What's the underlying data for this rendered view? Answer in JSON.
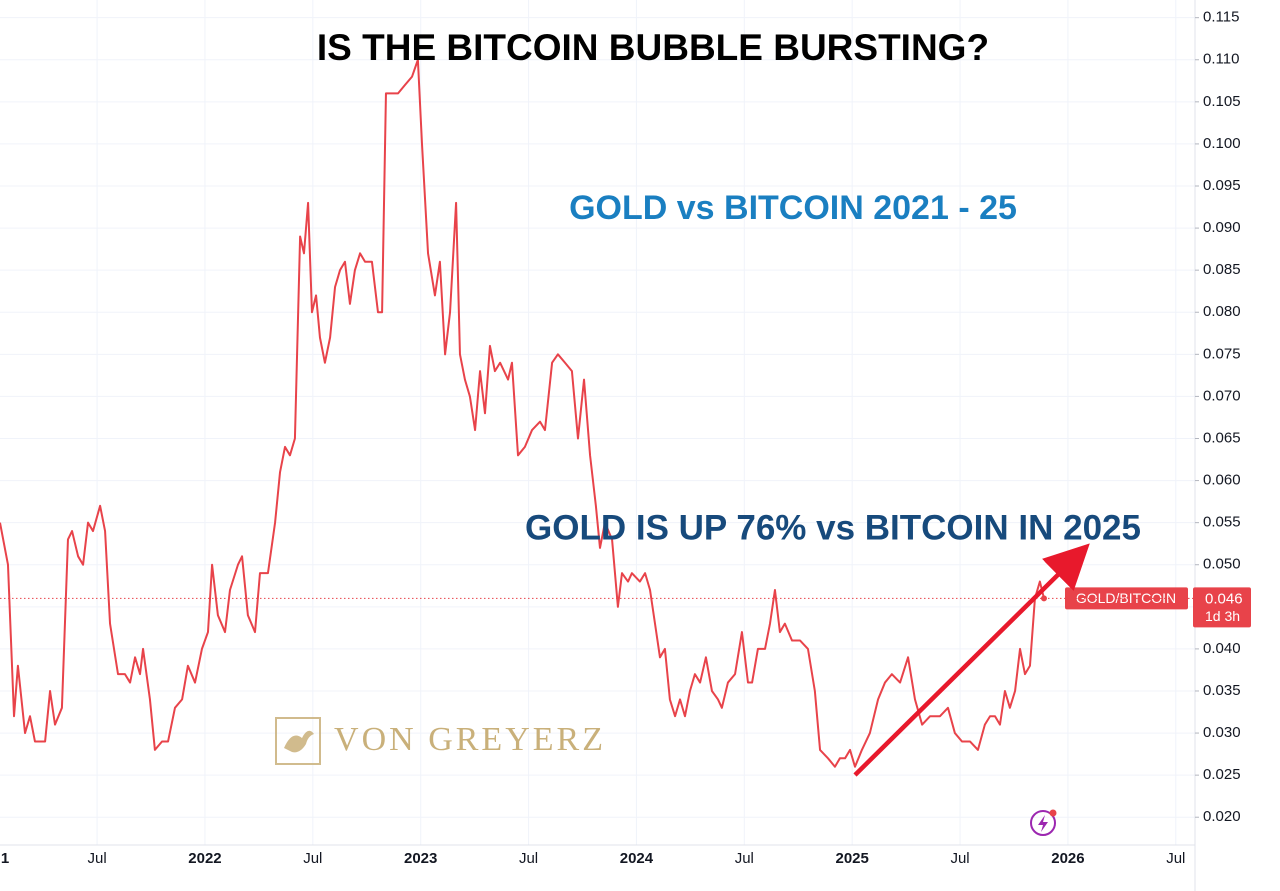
{
  "chart_data": {
    "type": "line",
    "title": "IS THE BITCOIN BUBBLE BURSTING?",
    "subtitle": "GOLD vs BITCOIN 2021 - 25",
    "annotation": "GOLD IS UP 76% vs BITCOIN IN 2025",
    "watermark": "VON GREYERZ",
    "last_value": 0.046,
    "countdown": "1d 3h",
    "grid": true,
    "xlim": [
      2021.05,
      2026.589
    ],
    "ylim": [
      0.0167,
      0.1171
    ],
    "xticks": [
      {
        "value": 2021,
        "label": "1"
      },
      {
        "value": 2021.5,
        "label": "Jul"
      },
      2022,
      {
        "value": 2022.5,
        "label": "Jul"
      },
      2023,
      {
        "value": 2023.5,
        "label": "Jul"
      },
      2024,
      {
        "value": 2024.5,
        "label": "Jul"
      },
      2025,
      {
        "value": 2025.5,
        "label": "Jul"
      },
      2026,
      {
        "value": 2026.5,
        "label": "Jul"
      }
    ],
    "yticks": [
      {
        "value": 0.02,
        "label": "0.020"
      },
      0.025,
      {
        "value": 0.03,
        "label": "0.030"
      },
      0.035,
      {
        "value": 0.04,
        "label": "0.040"
      },
      0.045,
      {
        "value": 0.05,
        "label": "0.050"
      },
      0.055,
      {
        "value": 0.06,
        "label": "0.060"
      },
      0.065,
      {
        "value": 0.07,
        "label": "0.070"
      },
      0.075,
      {
        "value": 0.08,
        "label": "0.080"
      },
      0.085,
      {
        "value": 0.09,
        "label": "0.090"
      },
      0.095,
      {
        "value": 0.1,
        "label": "0.100"
      },
      0.105,
      {
        "value": 0.11,
        "label": "0.110"
      },
      0.115
    ],
    "x": [
      2021.05,
      2021.087,
      2021.115,
      2021.133,
      2021.166,
      2021.189,
      2021.212,
      2021.259,
      2021.282,
      2021.305,
      2021.337,
      2021.365,
      2021.384,
      2021.412,
      2021.435,
      2021.458,
      2021.481,
      2021.514,
      2021.537,
      2021.56,
      2021.597,
      2021.629,
      2021.653,
      2021.676,
      2021.699,
      2021.713,
      2021.745,
      2021.768,
      2021.801,
      2021.829,
      2021.861,
      2021.894,
      2021.921,
      2021.954,
      2021.986,
      2022.014,
      2022.033,
      2022.06,
      2022.093,
      2022.116,
      2022.153,
      2022.172,
      2022.199,
      2022.232,
      2022.255,
      2022.292,
      2022.325,
      2022.348,
      2022.371,
      2022.394,
      2022.417,
      2022.441,
      2022.459,
      2022.478,
      2022.496,
      2022.515,
      2022.533,
      2022.556,
      2022.58,
      2022.603,
      2022.626,
      2022.649,
      2022.672,
      2022.695,
      2022.719,
      2022.742,
      2022.774,
      2022.802,
      2022.821,
      2022.839,
      2022.867,
      2022.895,
      2022.927,
      2022.96,
      2022.987,
      2023.006,
      2023.034,
      2023.066,
      2023.089,
      2023.113,
      2023.136,
      2023.164,
      2023.182,
      2023.205,
      2023.228,
      2023.252,
      2023.275,
      2023.298,
      2023.321,
      2023.344,
      2023.368,
      2023.405,
      2023.423,
      2023.451,
      2023.483,
      2023.516,
      2023.553,
      2023.576,
      2023.609,
      2023.636,
      2023.669,
      2023.701,
      2023.729,
      2023.757,
      2023.785,
      2023.812,
      2023.831,
      2023.854,
      2023.887,
      2023.914,
      2023.933,
      2023.961,
      2023.979,
      2024.016,
      2024.04,
      2024.063,
      2024.086,
      2024.109,
      2024.132,
      2024.155,
      2024.179,
      2024.202,
      2024.225,
      2024.248,
      2024.271,
      2024.295,
      2024.322,
      2024.35,
      2024.378,
      2024.396,
      2024.424,
      2024.457,
      2024.489,
      2024.517,
      2024.536,
      2024.563,
      2024.596,
      2024.619,
      2024.642,
      2024.665,
      2024.688,
      2024.721,
      2024.758,
      2024.795,
      2024.827,
      2024.851,
      2024.888,
      2024.92,
      2024.943,
      2024.967,
      2024.99,
      2025.013,
      2025.045,
      2025.082,
      2025.12,
      2025.152,
      2025.184,
      2025.222,
      2025.259,
      2025.291,
      2025.324,
      2025.361,
      2025.407,
      2025.444,
      2025.476,
      2025.509,
      2025.546,
      2025.583,
      2025.615,
      2025.639,
      2025.662,
      2025.685,
      2025.708,
      2025.731,
      2025.755,
      2025.778,
      2025.801,
      2025.824,
      2025.847,
      2025.87,
      2025.889
    ],
    "series": [
      {
        "name": "GOLD/BITCOIN",
        "color": "#e8434a",
        "values": [
          0.055,
          0.05,
          0.032,
          0.038,
          0.03,
          0.032,
          0.029,
          0.029,
          0.035,
          0.031,
          0.033,
          0.053,
          0.054,
          0.051,
          0.05,
          0.055,
          0.054,
          0.057,
          0.054,
          0.043,
          0.037,
          0.037,
          0.036,
          0.039,
          0.037,
          0.04,
          0.034,
          0.028,
          0.029,
          0.029,
          0.033,
          0.034,
          0.038,
          0.036,
          0.04,
          0.042,
          0.05,
          0.044,
          0.042,
          0.047,
          0.05,
          0.051,
          0.044,
          0.042,
          0.049,
          0.049,
          0.055,
          0.061,
          0.064,
          0.063,
          0.065,
          0.089,
          0.087,
          0.093,
          0.08,
          0.082,
          0.077,
          0.074,
          0.077,
          0.083,
          0.085,
          0.086,
          0.081,
          0.085,
          0.087,
          0.086,
          0.086,
          0.08,
          0.08,
          0.106,
          0.106,
          0.106,
          0.107,
          0.108,
          0.11,
          0.1,
          0.087,
          0.082,
          0.086,
          0.075,
          0.08,
          0.093,
          0.075,
          0.072,
          0.07,
          0.066,
          0.073,
          0.068,
          0.076,
          0.073,
          0.074,
          0.072,
          0.074,
          0.063,
          0.064,
          0.066,
          0.067,
          0.066,
          0.074,
          0.075,
          0.074,
          0.073,
          0.065,
          0.072,
          0.063,
          0.057,
          0.052,
          0.055,
          0.053,
          0.045,
          0.049,
          0.048,
          0.049,
          0.048,
          0.049,
          0.047,
          0.043,
          0.039,
          0.04,
          0.034,
          0.032,
          0.034,
          0.032,
          0.035,
          0.037,
          0.036,
          0.039,
          0.035,
          0.034,
          0.033,
          0.036,
          0.037,
          0.042,
          0.036,
          0.036,
          0.04,
          0.04,
          0.043,
          0.047,
          0.042,
          0.043,
          0.041,
          0.041,
          0.04,
          0.035,
          0.028,
          0.027,
          0.026,
          0.027,
          0.027,
          0.028,
          0.026,
          0.028,
          0.03,
          0.034,
          0.036,
          0.037,
          0.036,
          0.039,
          0.034,
          0.031,
          0.032,
          0.032,
          0.033,
          0.03,
          0.029,
          0.029,
          0.028,
          0.031,
          0.032,
          0.032,
          0.031,
          0.035,
          0.033,
          0.035,
          0.04,
          0.037,
          0.038,
          0.046,
          0.048,
          0.046
        ]
      }
    ]
  }
}
